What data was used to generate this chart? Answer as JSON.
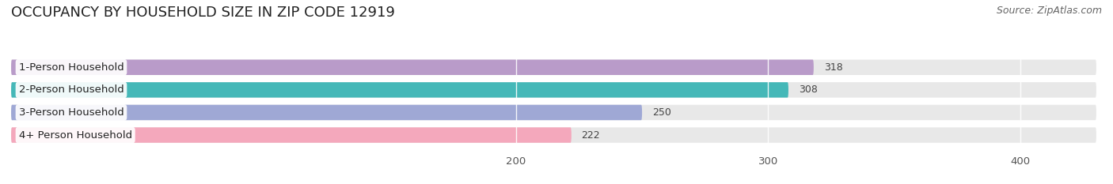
{
  "title": "OCCUPANCY BY HOUSEHOLD SIZE IN ZIP CODE 12919",
  "source": "Source: ZipAtlas.com",
  "categories": [
    "1-Person Household",
    "2-Person Household",
    "3-Person Household",
    "4+ Person Household"
  ],
  "values": [
    318,
    308,
    250,
    222
  ],
  "bar_colors": [
    "#b99bc9",
    "#45b8b8",
    "#9fa8d5",
    "#f4a8bc"
  ],
  "bar_background_color": "#e8e8e8",
  "background_color": "#ffffff",
  "row_bg_color": "#f0f0f0",
  "xlim_min": 0,
  "xlim_max": 430,
  "xticks": [
    200,
    300,
    400
  ],
  "title_fontsize": 13,
  "label_fontsize": 9.5,
  "value_fontsize": 9,
  "source_fontsize": 9,
  "bar_height": 0.68,
  "bar_gap": 1.0
}
